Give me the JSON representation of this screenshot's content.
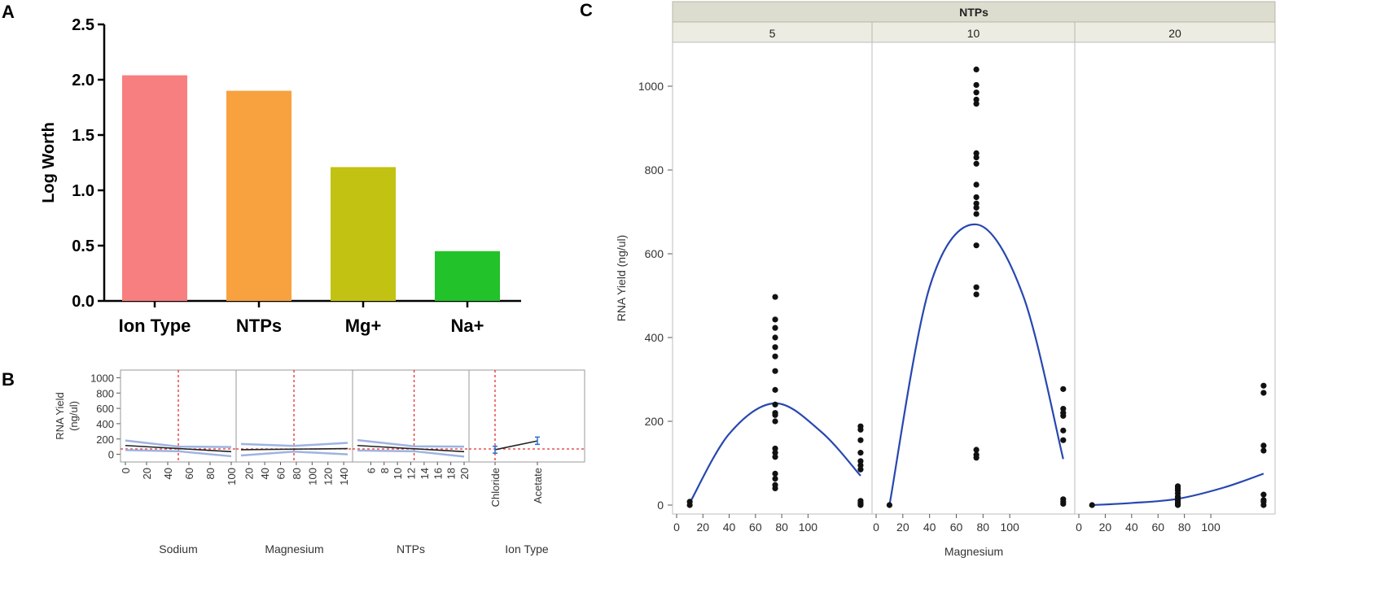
{
  "panel_labels": {
    "a": "A",
    "b": "B",
    "c": "C"
  },
  "chart_data": [
    {
      "id": "A",
      "type": "bar",
      "title": "",
      "xlabel": "",
      "ylabel": "Log Worth",
      "categories": [
        "Ion Type",
        "NTPs",
        "Mg+",
        "Na+"
      ],
      "values": [
        2.04,
        1.9,
        1.21,
        0.45
      ],
      "colors": [
        "#f77f7f",
        "#f7a23f",
        "#c2c212",
        "#22c22a"
      ],
      "ylim": [
        0,
        2.5
      ],
      "yticks": [
        "0.0",
        "0.5",
        "1.0",
        "1.5",
        "2.0",
        "2.5"
      ],
      "grid": false
    },
    {
      "id": "B",
      "type": "line",
      "title": "",
      "ylabel": "RNA Yield\n(ng/ul)",
      "ylim": [
        -100,
        1100
      ],
      "yticks": [
        "0",
        "200",
        "400",
        "600",
        "800",
        "1000"
      ],
      "reference_line_y": 70,
      "facets": [
        {
          "xlabel": "Sodium",
          "xlim": [
            0,
            100
          ],
          "xticks": [
            "0",
            "20",
            "40",
            "60",
            "80",
            "100"
          ],
          "reference_x": 50,
          "line": [
            [
              0,
              115
            ],
            [
              100,
              35
            ]
          ],
          "band_upper": [
            [
              0,
              180
            ],
            [
              50,
              100
            ],
            [
              100,
              95
            ]
          ],
          "band_lower": [
            [
              0,
              55
            ],
            [
              50,
              40
            ],
            [
              100,
              -25
            ]
          ]
        },
        {
          "xlabel": "Magnesium",
          "xlim": [
            10,
            145
          ],
          "xticks": [
            "20",
            "40",
            "60",
            "80",
            "100",
            "120",
            "140"
          ],
          "reference_x": 77,
          "line": [
            [
              10,
              60
            ],
            [
              145,
              75
            ]
          ],
          "band_upper": [
            [
              10,
              135
            ],
            [
              77,
              110
            ],
            [
              145,
              150
            ]
          ],
          "band_lower": [
            [
              10,
              -15
            ],
            [
              77,
              35
            ],
            [
              145,
              0
            ]
          ]
        },
        {
          "xlabel": "NTPs",
          "xlim": [
            4,
            20
          ],
          "xticks": [
            "6",
            "8",
            "10",
            "12",
            "14",
            "16",
            "18",
            "20"
          ],
          "reference_x": 12.5,
          "line": [
            [
              4,
              115
            ],
            [
              20,
              35
            ]
          ],
          "band_upper": [
            [
              4,
              185
            ],
            [
              12.5,
              105
            ],
            [
              20,
              100
            ]
          ],
          "band_lower": [
            [
              4,
              50
            ],
            [
              12.5,
              40
            ],
            [
              20,
              -30
            ]
          ]
        },
        {
          "xlabel": "Ion Type",
          "xlim": [
            0,
            3
          ],
          "xticks": [
            "Chloride",
            "Acetate"
          ],
          "xtick_positions": [
            0.6,
            1.8
          ],
          "reference_x": 0.6,
          "categorical": true,
          "line": [
            [
              0.6,
              60
            ],
            [
              1.8,
              175
            ]
          ],
          "error_bars": [
            {
              "x": 0.6,
              "low": 15,
              "high": 105
            },
            {
              "x": 1.8,
              "low": 130,
              "high": 225
            }
          ]
        }
      ]
    },
    {
      "id": "C",
      "type": "scatter",
      "title": "",
      "facet_header": "NTPs",
      "facets": [
        "5",
        "10",
        "20"
      ],
      "xlabel": "Magnesium",
      "ylabel": "RNA Yield  (ng/ul)",
      "xlim": [
        0,
        145
      ],
      "xticks": [
        "0",
        "20",
        "40",
        "60",
        "80",
        "100"
      ],
      "ylim": [
        -20,
        1100
      ],
      "yticks": [
        "0",
        "200",
        "400",
        "600",
        "800",
        "1000"
      ],
      "series": [
        {
          "facet": "5",
          "x": [
            10,
            10,
            75,
            75,
            75,
            75,
            75,
            75,
            75,
            75,
            75,
            75,
            75,
            75,
            75,
            75,
            75,
            75,
            75,
            75,
            75,
            140,
            140,
            140,
            140,
            140,
            140,
            140,
            140,
            140,
            140,
            140
          ],
          "y": [
            8,
            0,
            497,
            443,
            423,
            400,
            377,
            355,
            320,
            275,
            240,
            220,
            215,
            200,
            135,
            125,
            115,
            75,
            63,
            48,
            40,
            188,
            180,
            155,
            125,
            105,
            95,
            85,
            10,
            5,
            2,
            0
          ],
          "fit": [
            [
              10,
              5
            ],
            [
              40,
              170
            ],
            [
              75,
              243
            ],
            [
              110,
              175
            ],
            [
              140,
              70
            ]
          ]
        },
        {
          "facet": "10",
          "x": [
            10,
            75,
            75,
            75,
            75,
            75,
            75,
            75,
            75,
            75,
            75,
            75,
            75,
            75,
            75,
            75,
            75,
            75,
            75,
            75,
            140,
            140,
            140,
            140,
            140,
            140,
            140,
            140,
            140
          ],
          "y": [
            0,
            1040,
            1003,
            985,
            968,
            958,
            840,
            830,
            815,
            765,
            735,
            720,
            710,
            695,
            620,
            520,
            503,
            132,
            120,
            113,
            277,
            230,
            220,
            213,
            178,
            155,
            14,
            8,
            3
          ],
          "fit": [
            [
              10,
              0
            ],
            [
              40,
              520
            ],
            [
              75,
              670
            ],
            [
              110,
              500
            ],
            [
              140,
              110
            ]
          ]
        },
        {
          "facet": "20",
          "x": [
            10,
            75,
            75,
            75,
            75,
            75,
            75,
            75,
            75,
            75,
            75,
            140,
            140,
            140,
            140,
            140,
            140,
            140,
            140
          ],
          "y": [
            0,
            45,
            40,
            35,
            28,
            20,
            15,
            10,
            5,
            2,
            0,
            285,
            268,
            142,
            130,
            25,
            12,
            8,
            0
          ],
          "fit": [
            [
              10,
              0
            ],
            [
              40,
              5
            ],
            [
              75,
              15
            ],
            [
              110,
              42
            ],
            [
              140,
              75
            ]
          ]
        }
      ]
    }
  ]
}
